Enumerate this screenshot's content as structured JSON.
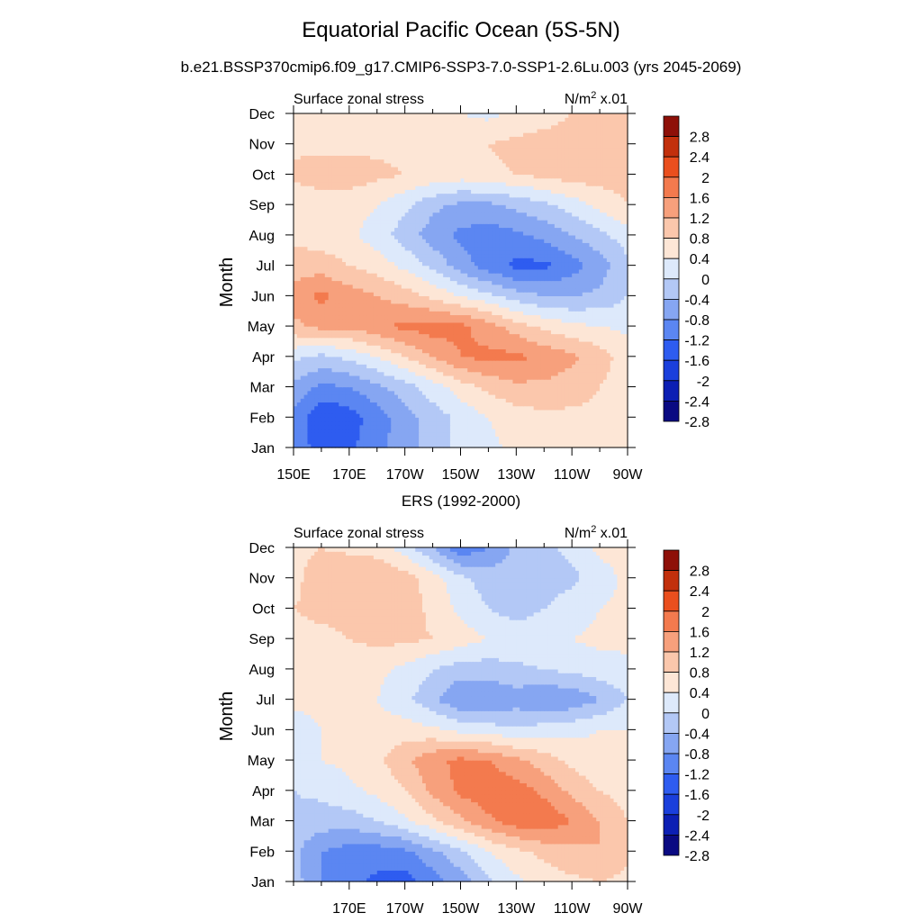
{
  "figure": {
    "title": "Equatorial Pacific Ocean (5S-5N)",
    "subtitle": "b.e21.BSSP370cmip6.f09_g17.CMIP6-SSP3-7.0-SSP1-2.6Lu.003 (yrs 2045-2069)",
    "second_title": "ERS (1992-2000)"
  },
  "colors": {
    "levels": [
      -2.8,
      -2.4,
      -2,
      -1.6,
      -1.2,
      -0.8,
      -0.4,
      0,
      0.4,
      0.8,
      1.2,
      1.6,
      2,
      2.4,
      2.8
    ],
    "fills": [
      "#0a0a82",
      "#0c1fb4",
      "#1a3fdc",
      "#2e5cf0",
      "#5b86f2",
      "#86a6f2",
      "#b3c8f6",
      "#dde9fb",
      "#fde6d6",
      "#fbc7ac",
      "#f7a07c",
      "#f37a4e",
      "#ea4f1e",
      "#c2300c",
      "#8e1008"
    ]
  },
  "chart_data": [
    {
      "type": "heatmap",
      "panel_title_left": "Surface zonal stress",
      "units_label": "N/m",
      "units_sup": "2",
      "units_suffix": " x.01",
      "ylabel": "Month",
      "y_categories": [
        "Jan",
        "Feb",
        "Mar",
        "Apr",
        "May",
        "Jun",
        "Jul",
        "Aug",
        "Sep",
        "Oct",
        "Nov",
        "Dec"
      ],
      "xlim": [
        150,
        270
      ],
      "x_ticks": [
        150,
        170,
        190,
        210,
        230,
        250,
        270
      ],
      "x_tick_labels": [
        "150E",
        "170E",
        "170W",
        "150W",
        "130W",
        "110W",
        "90W"
      ],
      "colorbar_labels": [
        "2.8",
        "2.4",
        "2",
        "1.6",
        "1.2",
        "0.8",
        "0.4",
        "0",
        "-0.4",
        "-0.8",
        "-1.2",
        "-1.6",
        "-2",
        "-2.4",
        "-2.8"
      ],
      "x": [
        150,
        160,
        170,
        180,
        190,
        200,
        210,
        220,
        230,
        240,
        250,
        260,
        270
      ],
      "z": [
        [
          -1.2,
          -1.9,
          -1.7,
          -1.3,
          -1.0,
          -0.6,
          -0.3,
          -0.1,
          0.1,
          0.2,
          0.2,
          0.2,
          0.1
        ],
        [
          -1.3,
          -2.0,
          -1.8,
          -1.4,
          -1.0,
          -0.6,
          -0.3,
          0.0,
          0.2,
          0.3,
          0.3,
          0.3,
          0.1
        ],
        [
          -0.9,
          -1.3,
          -1.2,
          -0.9,
          -0.6,
          -0.2,
          0.2,
          0.5,
          0.7,
          0.7,
          0.6,
          0.4,
          0.1
        ],
        [
          -0.3,
          -0.5,
          -0.3,
          0.0,
          0.4,
          0.8,
          1.2,
          1.3,
          1.3,
          1.1,
          0.9,
          0.6,
          0.2
        ],
        [
          0.7,
          0.9,
          0.9,
          1.1,
          1.3,
          1.4,
          1.3,
          1.0,
          0.6,
          0.3,
          0.1,
          0.0,
          -0.1
        ],
        [
          1.0,
          1.3,
          1.0,
          0.8,
          0.6,
          0.3,
          0.0,
          -0.3,
          -0.6,
          -0.8,
          -0.8,
          -0.7,
          -0.4
        ],
        [
          0.6,
          0.6,
          0.4,
          0.2,
          -0.1,
          -0.5,
          -1.0,
          -1.4,
          -1.7,
          -1.7,
          -1.4,
          -1.0,
          -0.5
        ],
        [
          0.3,
          0.2,
          0.1,
          -0.2,
          -0.6,
          -1.0,
          -1.3,
          -1.4,
          -1.3,
          -1.1,
          -0.8,
          -0.5,
          -0.2
        ],
        [
          0.1,
          0.2,
          0.2,
          0.0,
          -0.3,
          -0.7,
          -0.9,
          -0.9,
          -0.7,
          -0.5,
          -0.2,
          0.1,
          0.4
        ],
        [
          0.5,
          0.6,
          0.6,
          0.5,
          0.4,
          0.3,
          0.2,
          0.3,
          0.4,
          0.5,
          0.6,
          0.6,
          0.6
        ],
        [
          0.3,
          0.3,
          0.3,
          0.3,
          0.3,
          0.3,
          0.3,
          0.4,
          0.5,
          0.6,
          0.6,
          0.6,
          0.5
        ],
        [
          0.2,
          0.2,
          0.2,
          0.2,
          0.2,
          0.1,
          0.0,
          -0.1,
          0.1,
          0.2,
          0.4,
          0.5,
          0.4
        ]
      ]
    },
    {
      "type": "heatmap",
      "panel_title_left": "Surface zonal stress",
      "units_label": "N/m",
      "units_sup": "2",
      "units_suffix": " x.01",
      "ylabel": "Month",
      "y_categories": [
        "Jan",
        "Feb",
        "Mar",
        "Apr",
        "May",
        "Jun",
        "Jul",
        "Aug",
        "Sep",
        "Oct",
        "Nov",
        "Dec"
      ],
      "xlim": [
        150,
        270
      ],
      "x_ticks": [
        170,
        190,
        210,
        230,
        250,
        270
      ],
      "x_tick_labels": [
        "170E",
        "170W",
        "150W",
        "130W",
        "110W",
        "90W"
      ],
      "colorbar_labels": [
        "2.8",
        "2.4",
        "2",
        "1.6",
        "1.2",
        "0.8",
        "0.4",
        "0",
        "-0.4",
        "-0.8",
        "-1.2",
        "-1.6",
        "-2",
        "-2.4",
        "-2.8"
      ],
      "x": [
        150,
        160,
        170,
        180,
        190,
        200,
        210,
        220,
        230,
        240,
        250,
        260,
        270
      ],
      "z": [
        [
          -0.6,
          -1.2,
          -1.5,
          -1.7,
          -1.8,
          -1.4,
          -1.0,
          -0.5,
          -0.1,
          0.2,
          0.3,
          0.4,
          0.3
        ],
        [
          -0.7,
          -1.2,
          -1.4,
          -1.4,
          -1.3,
          -0.9,
          -0.5,
          0.0,
          0.3,
          0.5,
          0.7,
          0.8,
          0.5
        ],
        [
          -0.5,
          -0.6,
          -0.6,
          -0.4,
          -0.1,
          0.3,
          0.7,
          1.1,
          1.4,
          1.5,
          1.2,
          0.8,
          0.4
        ],
        [
          -0.4,
          -0.3,
          -0.1,
          0.1,
          0.4,
          0.9,
          1.3,
          1.5,
          1.4,
          1.1,
          0.7,
          0.4,
          0.2
        ],
        [
          -0.2,
          0.0,
          0.1,
          0.3,
          0.7,
          1.1,
          1.3,
          1.2,
          0.9,
          0.6,
          0.3,
          0.1,
          0.0
        ],
        [
          -0.2,
          0.0,
          0.2,
          0.2,
          0.2,
          0.1,
          -0.1,
          -0.2,
          -0.3,
          -0.2,
          -0.1,
          0.0,
          0.0
        ],
        [
          0.1,
          0.1,
          0.1,
          0.0,
          -0.3,
          -0.7,
          -1.2,
          -1.2,
          -1.0,
          -1.2,
          -1.1,
          -0.8,
          -0.4
        ],
        [
          0.2,
          0.2,
          0.2,
          0.1,
          -0.1,
          -0.4,
          -0.6,
          -0.6,
          -0.5,
          -0.4,
          -0.3,
          -0.2,
          -0.1
        ],
        [
          0.3,
          0.3,
          0.4,
          0.5,
          0.5,
          0.4,
          0.2,
          0.0,
          -0.1,
          -0.1,
          0.0,
          0.1,
          0.1
        ],
        [
          0.4,
          0.5,
          0.5,
          0.6,
          0.6,
          0.3,
          -0.1,
          -0.4,
          -0.6,
          -0.4,
          -0.2,
          0.0,
          0.1
        ],
        [
          0.3,
          0.6,
          0.8,
          0.8,
          0.6,
          0.2,
          -0.3,
          -0.6,
          -0.6,
          -0.6,
          -0.5,
          -0.2,
          0.1
        ],
        [
          0.3,
          0.4,
          0.3,
          0.2,
          -0.2,
          -0.8,
          -1.5,
          -1.2,
          -0.7,
          -0.5,
          -0.3,
          0.1,
          0.2
        ]
      ]
    }
  ]
}
